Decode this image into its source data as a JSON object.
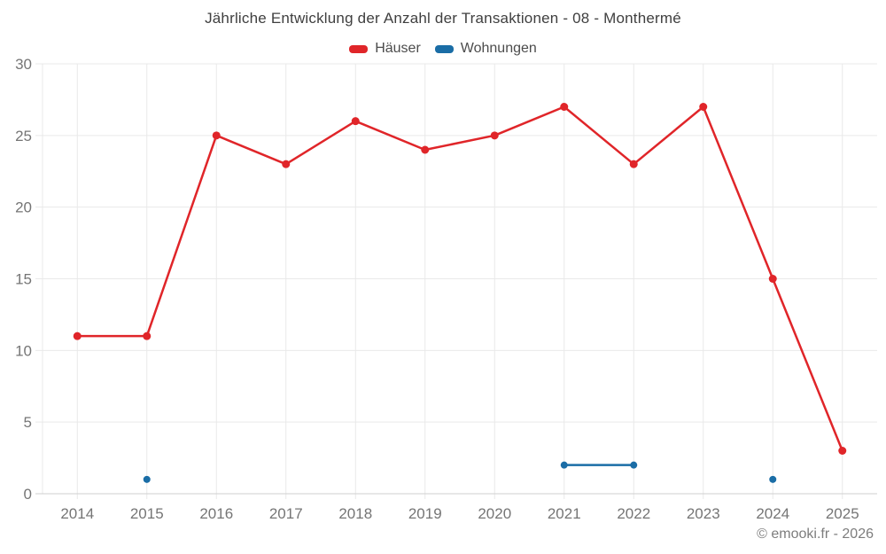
{
  "title": "Jährliche Entwicklung der Anzahl der Transaktionen - 08 - Monthermé",
  "legend": [
    {
      "label": "Häuser",
      "color": "#e02529"
    },
    {
      "label": "Wohnungen",
      "color": "#1a6da6"
    }
  ],
  "footer": {
    "copyright": "© emooki.fr - 2026"
  },
  "chart_data": {
    "type": "line",
    "title": "Jährliche Entwicklung der Anzahl der Transaktionen - 08 - Monthermé",
    "categories": [
      "2014",
      "2015",
      "2016",
      "2017",
      "2018",
      "2019",
      "2020",
      "2021",
      "2022",
      "2023",
      "2024",
      "2025"
    ],
    "series": [
      {
        "name": "Häuser",
        "color": "#e02529",
        "values": [
          11,
          11,
          25,
          23,
          26,
          24,
          25,
          27,
          23,
          27,
          15,
          3
        ]
      },
      {
        "name": "Wohnungen",
        "color": "#1a6da6",
        "values": [
          null,
          1,
          null,
          null,
          null,
          null,
          null,
          2,
          2,
          null,
          1,
          null
        ]
      }
    ],
    "xlabel": "",
    "ylabel": "",
    "ylim": [
      0,
      30
    ],
    "ytick_step": 5,
    "grid": true,
    "legend_position": "top"
  }
}
